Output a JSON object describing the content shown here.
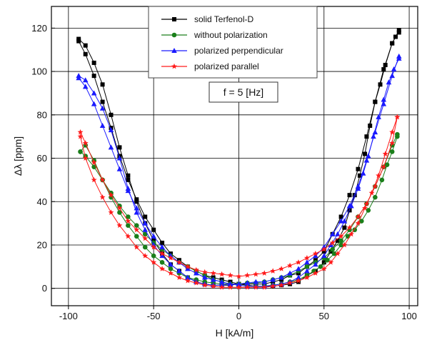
{
  "chart_data": {
    "type": "scatter",
    "xlabel": "H [kA/m]",
    "ylabel": "Δλ [ppm]",
    "xlim": [
      -110,
      105
    ],
    "ylim": [
      -8,
      130
    ],
    "x_ticks": [
      -100,
      -50,
      0,
      50,
      100
    ],
    "y_ticks": [
      0,
      20,
      40,
      60,
      80,
      100,
      120
    ],
    "grid": true,
    "legend": "top-center",
    "annotation": "f = 5 [Hz]",
    "series": [
      {
        "name": "solid Terfenol-D",
        "color": "#000000",
        "marker": "square",
        "upper": [
          [
            -94,
            115
          ],
          [
            -90,
            112
          ],
          [
            -85,
            104
          ],
          [
            -80,
            94
          ],
          [
            -75,
            80
          ],
          [
            -70,
            65
          ],
          [
            -65,
            52
          ],
          [
            -60,
            40
          ],
          [
            -55,
            30
          ],
          [
            -50,
            22
          ],
          [
            -45,
            16
          ],
          [
            -40,
            11
          ],
          [
            -35,
            8
          ],
          [
            -30,
            5
          ],
          [
            -25,
            3
          ],
          [
            -20,
            2
          ],
          [
            -15,
            1.5
          ],
          [
            -10,
            1.5
          ],
          [
            -5,
            1.5
          ],
          [
            0,
            2
          ],
          [
            5,
            2
          ],
          [
            10,
            2
          ],
          [
            15,
            2
          ],
          [
            20,
            3
          ],
          [
            25,
            4
          ],
          [
            30,
            6
          ],
          [
            35,
            7
          ],
          [
            40,
            10
          ],
          [
            45,
            13
          ],
          [
            50,
            17
          ],
          [
            55,
            25
          ],
          [
            60,
            33
          ],
          [
            65,
            43
          ],
          [
            70,
            55
          ],
          [
            75,
            70
          ],
          [
            80,
            86
          ],
          [
            85,
            101
          ],
          [
            90,
            113
          ],
          [
            94,
            119
          ]
        ],
        "lower": [
          [
            94,
            118
          ],
          [
            92,
            116
          ],
          [
            90,
            113
          ],
          [
            86,
            103
          ],
          [
            83,
            94
          ],
          [
            80,
            86
          ],
          [
            77,
            75
          ],
          [
            74,
            62
          ],
          [
            71,
            52
          ],
          [
            68,
            43
          ],
          [
            65,
            36
          ],
          [
            62,
            28
          ],
          [
            58,
            22
          ],
          [
            54,
            17
          ],
          [
            50,
            12
          ],
          [
            45,
            8
          ],
          [
            40,
            6
          ],
          [
            35,
            3
          ],
          [
            30,
            2
          ],
          [
            25,
            1.5
          ],
          [
            20,
            1
          ],
          [
            15,
            1
          ],
          [
            10,
            1
          ],
          [
            5,
            1.5
          ],
          [
            0,
            2
          ],
          [
            -5,
            3
          ],
          [
            -10,
            4
          ],
          [
            -15,
            5
          ],
          [
            -20,
            6
          ],
          [
            -25,
            8
          ],
          [
            -30,
            10
          ],
          [
            -35,
            13
          ],
          [
            -40,
            16
          ],
          [
            -45,
            21
          ],
          [
            -50,
            27
          ],
          [
            -55,
            33
          ],
          [
            -60,
            41
          ],
          [
            -65,
            50
          ],
          [
            -70,
            61
          ],
          [
            -75,
            74
          ],
          [
            -80,
            86
          ],
          [
            -85,
            98
          ],
          [
            -90,
            108
          ],
          [
            -94,
            114
          ]
        ]
      },
      {
        "name": "without polarization",
        "color": "#1a7f1a",
        "marker": "circle",
        "upper": [
          [
            -93,
            63
          ],
          [
            -90,
            66
          ],
          [
            -85,
            59
          ],
          [
            -80,
            50
          ],
          [
            -75,
            42
          ],
          [
            -70,
            35
          ],
          [
            -65,
            29
          ],
          [
            -60,
            24
          ],
          [
            -55,
            19
          ],
          [
            -50,
            15
          ],
          [
            -45,
            12
          ],
          [
            -40,
            9
          ],
          [
            -35,
            7
          ],
          [
            -30,
            5
          ],
          [
            -25,
            4
          ],
          [
            -20,
            3
          ],
          [
            -15,
            2.5
          ],
          [
            -10,
            2
          ],
          [
            -5,
            2
          ],
          [
            0,
            2
          ],
          [
            5,
            2.5
          ],
          [
            10,
            2.5
          ],
          [
            15,
            3
          ],
          [
            20,
            4
          ],
          [
            25,
            5
          ],
          [
            30,
            6
          ],
          [
            35,
            8
          ],
          [
            40,
            10
          ],
          [
            45,
            12
          ],
          [
            50,
            14
          ],
          [
            55,
            18
          ],
          [
            60,
            22
          ],
          [
            65,
            27
          ],
          [
            70,
            33
          ],
          [
            75,
            39
          ],
          [
            80,
            47
          ],
          [
            85,
            56
          ],
          [
            90,
            66
          ],
          [
            93,
            71
          ]
        ],
        "lower": [
          [
            93,
            70
          ],
          [
            90,
            63
          ],
          [
            87,
            57
          ],
          [
            84,
            50
          ],
          [
            80,
            42
          ],
          [
            76,
            36
          ],
          [
            72,
            31
          ],
          [
            68,
            27
          ],
          [
            64,
            24
          ],
          [
            60,
            20
          ],
          [
            56,
            16
          ],
          [
            52,
            13
          ],
          [
            48,
            10
          ],
          [
            44,
            8
          ],
          [
            40,
            6
          ],
          [
            35,
            4
          ],
          [
            30,
            3
          ],
          [
            25,
            2
          ],
          [
            20,
            1.5
          ],
          [
            15,
            1
          ],
          [
            10,
            1
          ],
          [
            5,
            1
          ],
          [
            0,
            1.5
          ],
          [
            -5,
            2
          ],
          [
            -10,
            3
          ],
          [
            -15,
            4
          ],
          [
            -20,
            6
          ],
          [
            -25,
            8
          ],
          [
            -30,
            10
          ],
          [
            -35,
            12
          ],
          [
            -40,
            15
          ],
          [
            -45,
            18
          ],
          [
            -50,
            21
          ],
          [
            -55,
            25
          ],
          [
            -60,
            29
          ],
          [
            -65,
            33
          ],
          [
            -70,
            38
          ],
          [
            -75,
            44
          ],
          [
            -80,
            50
          ],
          [
            -85,
            56
          ],
          [
            -90,
            61
          ],
          [
            -93,
            63
          ]
        ]
      },
      {
        "name": "polarized perpendicular",
        "color": "#1a1aff",
        "marker": "triangle",
        "upper": [
          [
            -94,
            98
          ],
          [
            -90,
            96
          ],
          [
            -85,
            90
          ],
          [
            -80,
            83
          ],
          [
            -75,
            73
          ],
          [
            -70,
            60
          ],
          [
            -65,
            46
          ],
          [
            -60,
            35
          ],
          [
            -55,
            27
          ],
          [
            -50,
            20
          ],
          [
            -45,
            15
          ],
          [
            -40,
            11
          ],
          [
            -35,
            8
          ],
          [
            -30,
            5
          ],
          [
            -25,
            3
          ],
          [
            -20,
            2
          ],
          [
            -15,
            1.5
          ],
          [
            -10,
            1.5
          ],
          [
            -5,
            2
          ],
          [
            0,
            2
          ],
          [
            5,
            2.5
          ],
          [
            10,
            3
          ],
          [
            15,
            3
          ],
          [
            20,
            4
          ],
          [
            25,
            5
          ],
          [
            30,
            7
          ],
          [
            35,
            9
          ],
          [
            40,
            12
          ],
          [
            45,
            15
          ],
          [
            50,
            19
          ],
          [
            55,
            25
          ],
          [
            60,
            31
          ],
          [
            65,
            38
          ],
          [
            70,
            47
          ],
          [
            75,
            59
          ],
          [
            80,
            72
          ],
          [
            85,
            85
          ],
          [
            90,
            98
          ],
          [
            94,
            107
          ]
        ],
        "lower": [
          [
            94,
            106
          ],
          [
            91,
            101
          ],
          [
            88,
            95
          ],
          [
            85,
            87
          ],
          [
            82,
            79
          ],
          [
            79,
            70
          ],
          [
            76,
            61
          ],
          [
            73,
            53
          ],
          [
            70,
            46
          ],
          [
            66,
            38
          ],
          [
            62,
            31
          ],
          [
            58,
            25
          ],
          [
            54,
            20
          ],
          [
            50,
            15
          ],
          [
            45,
            11
          ],
          [
            40,
            8
          ],
          [
            35,
            5
          ],
          [
            30,
            3
          ],
          [
            25,
            2
          ],
          [
            20,
            1.5
          ],
          [
            15,
            1
          ],
          [
            10,
            1
          ],
          [
            5,
            1
          ],
          [
            0,
            1.5
          ],
          [
            -5,
            2
          ],
          [
            -10,
            3
          ],
          [
            -15,
            4
          ],
          [
            -20,
            5
          ],
          [
            -25,
            7
          ],
          [
            -30,
            9
          ],
          [
            -35,
            12
          ],
          [
            -40,
            15
          ],
          [
            -45,
            19
          ],
          [
            -50,
            24
          ],
          [
            -55,
            30
          ],
          [
            -60,
            37
          ],
          [
            -65,
            45
          ],
          [
            -70,
            55
          ],
          [
            -75,
            65
          ],
          [
            -80,
            75
          ],
          [
            -85,
            85
          ],
          [
            -90,
            93
          ],
          [
            -94,
            97
          ]
        ]
      },
      {
        "name": "polarized parallel",
        "color": "#ff1a1a",
        "marker": "star",
        "upper": [
          [
            -93,
            72
          ],
          [
            -90,
            67
          ],
          [
            -85,
            58
          ],
          [
            -80,
            50
          ],
          [
            -75,
            43
          ],
          [
            -70,
            37
          ],
          [
            -65,
            31
          ],
          [
            -60,
            27
          ],
          [
            -55,
            23
          ],
          [
            -50,
            19
          ],
          [
            -45,
            16
          ],
          [
            -40,
            14
          ],
          [
            -35,
            12
          ],
          [
            -30,
            10
          ],
          [
            -25,
            8.5
          ],
          [
            -20,
            7.5
          ],
          [
            -15,
            7
          ],
          [
            -10,
            6.5
          ],
          [
            -5,
            6
          ],
          [
            0,
            5.5
          ],
          [
            5,
            6
          ],
          [
            10,
            6.5
          ],
          [
            15,
            7
          ],
          [
            20,
            8
          ],
          [
            25,
            9
          ],
          [
            30,
            10.5
          ],
          [
            35,
            12
          ],
          [
            40,
            14
          ],
          [
            45,
            16
          ],
          [
            50,
            18
          ],
          [
            55,
            21
          ],
          [
            60,
            24
          ],
          [
            65,
            28
          ],
          [
            70,
            33
          ],
          [
            75,
            39
          ],
          [
            80,
            47
          ],
          [
            85,
            56
          ],
          [
            90,
            67
          ],
          [
            93,
            79
          ]
        ],
        "lower": [
          [
            93,
            79
          ],
          [
            90,
            72
          ],
          [
            86,
            62
          ],
          [
            82,
            52
          ],
          [
            78,
            44
          ],
          [
            74,
            37
          ],
          [
            70,
            30
          ],
          [
            66,
            25
          ],
          [
            62,
            20
          ],
          [
            58,
            16
          ],
          [
            54,
            12
          ],
          [
            50,
            9
          ],
          [
            45,
            7
          ],
          [
            40,
            5
          ],
          [
            35,
            3.5
          ],
          [
            30,
            2.5
          ],
          [
            25,
            1.5
          ],
          [
            20,
            1
          ],
          [
            15,
            0.5
          ],
          [
            10,
            0.5
          ],
          [
            5,
            0.5
          ],
          [
            0,
            0.5
          ],
          [
            -5,
            0.5
          ],
          [
            -10,
            0.5
          ],
          [
            -15,
            1
          ],
          [
            -20,
            1.5
          ],
          [
            -25,
            2.5
          ],
          [
            -30,
            3.5
          ],
          [
            -35,
            5
          ],
          [
            -40,
            7
          ],
          [
            -45,
            9
          ],
          [
            -50,
            12
          ],
          [
            -55,
            15
          ],
          [
            -60,
            19
          ],
          [
            -65,
            24
          ],
          [
            -70,
            29
          ],
          [
            -75,
            35
          ],
          [
            -80,
            42
          ],
          [
            -85,
            50
          ],
          [
            -90,
            60
          ],
          [
            -93,
            70
          ]
        ]
      }
    ]
  }
}
